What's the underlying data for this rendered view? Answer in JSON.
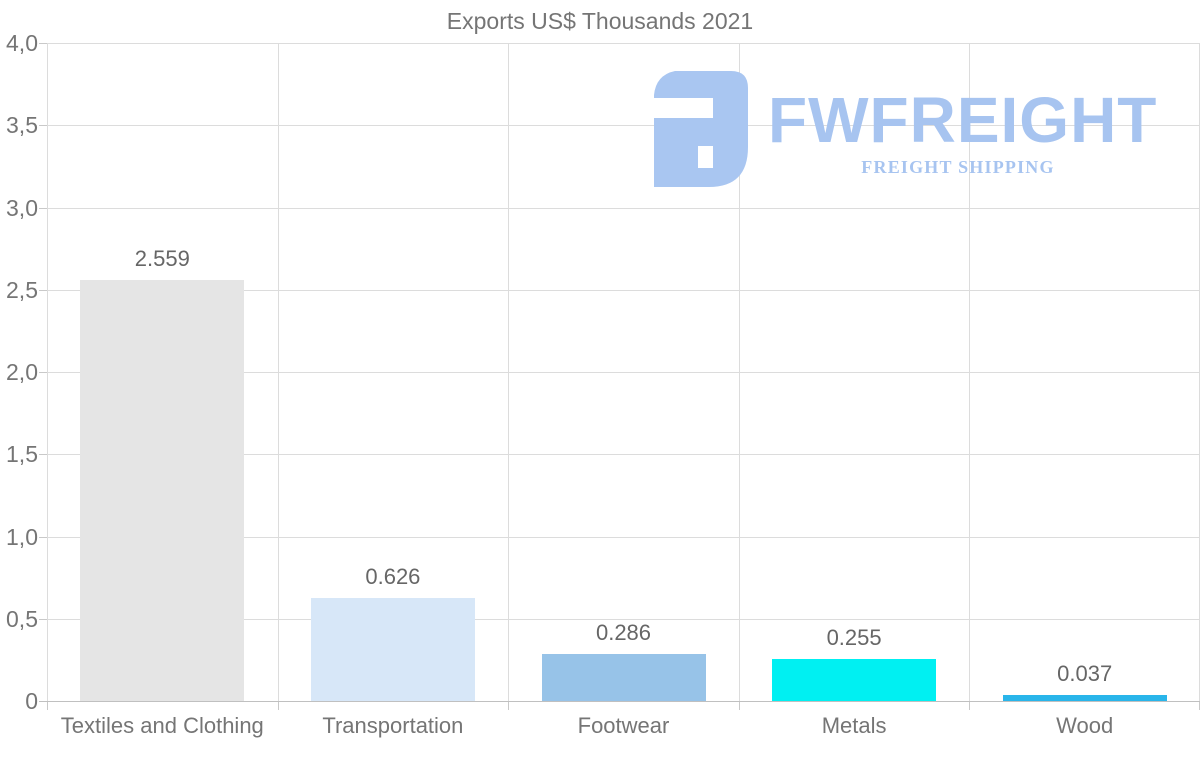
{
  "chart": {
    "title": "Exports US$ Thousands 2021"
  },
  "watermark": {
    "wordmark": "FWFREIGHT",
    "subtitle": "FREIGHT SHIPPING",
    "color": "#a7c4f0",
    "icon_color": "#a9c6f1"
  },
  "chart_data": {
    "type": "bar",
    "title": "Exports US$ Thousands 2021",
    "categories": [
      "Textiles and Clothing",
      "Transportation",
      "Footwear",
      "Metals",
      "Wood"
    ],
    "values": [
      2.559,
      0.626,
      0.286,
      0.255,
      0.037
    ],
    "value_labels": [
      "2.559",
      "0.626",
      "0.286",
      "0.255",
      "0.037"
    ],
    "bar_colors": [
      "#e5e5e5",
      "#d7e7f8",
      "#97c3e8",
      "#00f0f2",
      "#29b5ea"
    ],
    "xlabel": "",
    "ylabel": "",
    "ylim": [
      0,
      4
    ],
    "y_ticks": [
      {
        "value": 0,
        "label": "0"
      },
      {
        "value": 0.5,
        "label": "0,5"
      },
      {
        "value": 1,
        "label": "1,0"
      },
      {
        "value": 1.5,
        "label": "1,5"
      },
      {
        "value": 2,
        "label": "2,0"
      },
      {
        "value": 2.5,
        "label": "2,5"
      },
      {
        "value": 3,
        "label": "3,0"
      },
      {
        "value": 3.5,
        "label": "3,5"
      },
      {
        "value": 4,
        "label": "4,0"
      }
    ],
    "grid": true,
    "legend": false
  }
}
